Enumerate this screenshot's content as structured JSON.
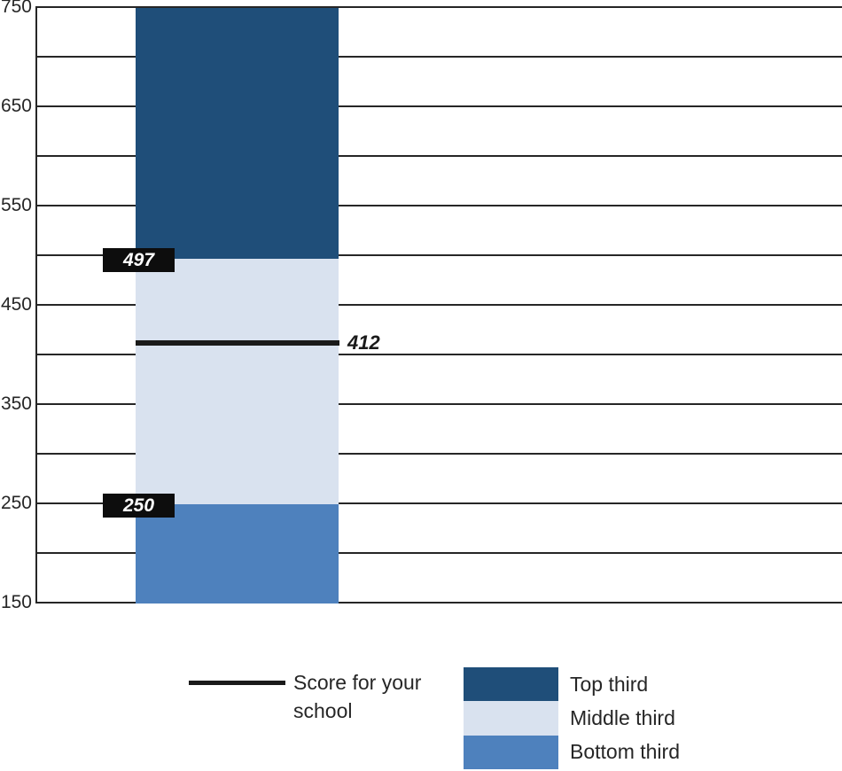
{
  "chart_data": {
    "type": "bar",
    "title": "",
    "xlabel": "",
    "ylabel": "",
    "axis": {
      "ymin": 150,
      "ymax": 750,
      "grid_step": 50,
      "label_step": 100,
      "tick_labels": [
        "750",
        "650",
        "550",
        "450",
        "350",
        "250",
        "150"
      ],
      "grid_on": true
    },
    "segments": [
      {
        "name": "Bottom third",
        "from": 150,
        "to": 250,
        "color": "#4E81BD"
      },
      {
        "name": "Middle third",
        "from": 250,
        "to": 497,
        "color": "#D9E2EF"
      },
      {
        "name": "Top third",
        "from": 497,
        "to": 750,
        "color": "#1F4E79"
      }
    ],
    "boundary_labels": [
      {
        "value": 497,
        "text": "497"
      },
      {
        "value": 250,
        "text": "250"
      }
    ],
    "score_line": {
      "value": 412,
      "label": "412"
    },
    "legend": {
      "position": "bottom",
      "line_label": "Score for your school",
      "items": [
        {
          "label": "Top third",
          "color": "#1F4E79"
        },
        {
          "label": "Middle third",
          "color": "#D9E2EF"
        },
        {
          "label": "Bottom third",
          "color": "#4E81BD"
        }
      ]
    },
    "colors": {
      "grid": "#262626",
      "axis_text": "#262626",
      "score_line": "#1A1A1A",
      "boundary_box_bg": "#0D0D0D",
      "boundary_box_text": "#FFFFFF",
      "top_third": "#1F4E79",
      "middle_third": "#D9E2EF",
      "bottom_third": "#4E81BD"
    }
  }
}
